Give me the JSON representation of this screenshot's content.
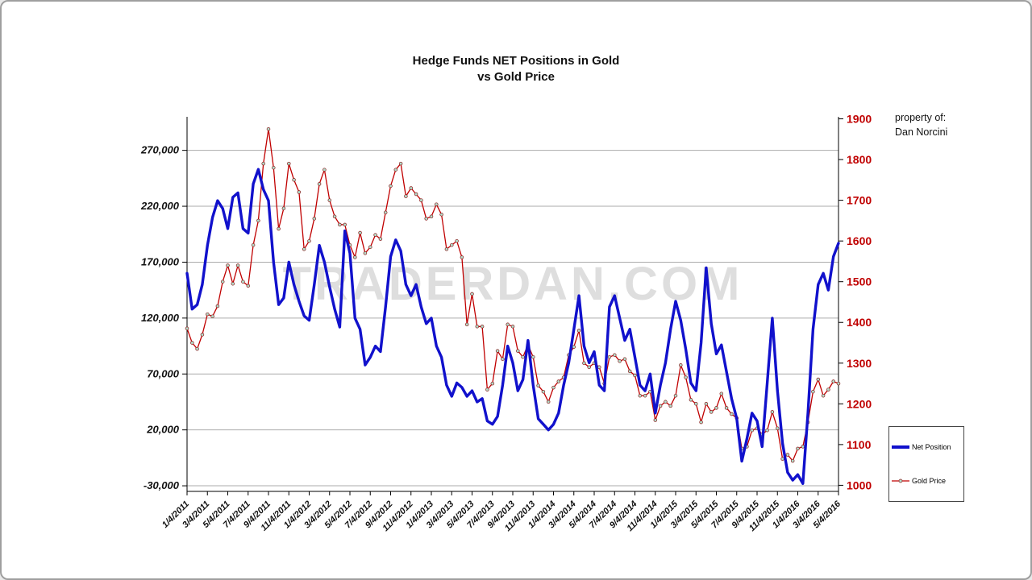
{
  "title": {
    "line1": "Hedge Funds NET Positions in Gold",
    "line2": "vs Gold Price"
  },
  "property_note": {
    "line1": "property of:",
    "line2": "Dan Norcini"
  },
  "watermark": "TRADERDAN.COM",
  "legend": {
    "items": [
      {
        "label": "Net Position",
        "color": "#1111cc"
      },
      {
        "label": "Gold Price",
        "color": "#c00000"
      }
    ]
  },
  "chart_data": {
    "type": "line",
    "title": "Hedge Funds NET Positions in Gold vs Gold Price",
    "grid": true,
    "legend_position": "right-bottom",
    "x_tick_labels": [
      "1/4/2011",
      "3/4/2011",
      "5/4/2011",
      "7/4/2011",
      "9/4/2011",
      "11/4/2011",
      "1/4/2012",
      "3/4/2012",
      "5/4/2012",
      "7/4/2012",
      "9/4/2012",
      "11/4/2012",
      "1/4/2013",
      "3/4/2013",
      "5/4/2013",
      "7/4/2013",
      "9/4/2013",
      "11/4/2013",
      "1/4/2014",
      "3/4/2014",
      "5/4/2014",
      "7/4/2014",
      "9/4/2014",
      "11/4/2014",
      "1/4/2015",
      "3/4/2015",
      "5/4/2015",
      "7/4/2015",
      "9/4/2015",
      "11/4/2015",
      "1/4/2016",
      "3/4/2016",
      "5/4/2016"
    ],
    "points_per_tick": 4,
    "left_axis": {
      "ticks": [
        270000,
        220000,
        170000,
        120000,
        70000,
        20000,
        -30000
      ],
      "tick_labels": [
        "270,000",
        "220,000",
        "170,000",
        "120,000",
        "70,000",
        "20,000",
        "-30,000"
      ],
      "render_max": 300000,
      "render_min": -35000
    },
    "right_axis": {
      "ticks": [
        1900,
        1800,
        1700,
        1600,
        1500,
        1400,
        1300,
        1200,
        1100,
        1000
      ],
      "tick_labels": [
        "1900",
        "1800",
        "1700",
        "1600",
        "1500",
        "1400",
        "1300",
        "1200",
        "1100",
        "1000"
      ],
      "render_max": 1905,
      "render_min": 985
    },
    "series": [
      {
        "name": "Net Position",
        "axis": "left",
        "color": "#1111cc",
        "width": 3.4,
        "values": [
          160000,
          128000,
          132000,
          150000,
          185000,
          210000,
          225000,
          218000,
          200000,
          228000,
          232000,
          200000,
          196000,
          240000,
          253000,
          235000,
          225000,
          170000,
          132000,
          138000,
          170000,
          150000,
          135000,
          122000,
          118000,
          150000,
          185000,
          170000,
          148000,
          128000,
          112000,
          198000,
          178000,
          120000,
          110000,
          78000,
          85000,
          95000,
          90000,
          130000,
          175000,
          190000,
          180000,
          150000,
          140000,
          150000,
          130000,
          115000,
          120000,
          95000,
          85000,
          60000,
          50000,
          62000,
          58000,
          50000,
          55000,
          45000,
          48000,
          28000,
          25000,
          32000,
          60000,
          95000,
          80000,
          55000,
          65000,
          100000,
          60000,
          30000,
          25000,
          20000,
          25000,
          35000,
          60000,
          80000,
          110000,
          140000,
          95000,
          80000,
          90000,
          60000,
          55000,
          130000,
          140000,
          120000,
          100000,
          110000,
          85000,
          60000,
          55000,
          70000,
          35000,
          60000,
          80000,
          110000,
          135000,
          118000,
          92000,
          62000,
          55000,
          98000,
          165000,
          115000,
          88000,
          96000,
          72000,
          48000,
          30000,
          -8000,
          12000,
          35000,
          28000,
          5000,
          62000,
          120000,
          55000,
          8000,
          -18000,
          -25000,
          -20000,
          -28000,
          35000,
          110000,
          150000,
          160000,
          145000,
          175000,
          187000
        ]
      },
      {
        "name": "Gold Price",
        "axis": "right",
        "color": "#c00000",
        "width": 1.3,
        "marker": {
          "fill": "#b2ddcb",
          "stroke": "#8b1a1a",
          "radius": 1.9
        },
        "values": [
          1385,
          1350,
          1335,
          1370,
          1420,
          1415,
          1440,
          1500,
          1540,
          1495,
          1540,
          1500,
          1490,
          1590,
          1650,
          1790,
          1875,
          1780,
          1630,
          1680,
          1790,
          1750,
          1720,
          1580,
          1600,
          1655,
          1740,
          1775,
          1700,
          1660,
          1640,
          1640,
          1590,
          1560,
          1620,
          1570,
          1585,
          1615,
          1605,
          1670,
          1735,
          1775,
          1790,
          1710,
          1730,
          1715,
          1700,
          1655,
          1660,
          1690,
          1665,
          1580,
          1590,
          1600,
          1560,
          1395,
          1470,
          1390,
          1390,
          1235,
          1250,
          1330,
          1310,
          1395,
          1390,
          1330,
          1315,
          1345,
          1315,
          1245,
          1230,
          1205,
          1240,
          1255,
          1265,
          1320,
          1340,
          1380,
          1300,
          1290,
          1300,
          1290,
          1250,
          1315,
          1320,
          1305,
          1310,
          1280,
          1270,
          1220,
          1220,
          1230,
          1160,
          1195,
          1205,
          1195,
          1220,
          1295,
          1265,
          1210,
          1200,
          1155,
          1200,
          1180,
          1190,
          1225,
          1190,
          1175,
          1165,
          1090,
          1095,
          1135,
          1140,
          1125,
          1135,
          1180,
          1140,
          1065,
          1075,
          1060,
          1090,
          1095,
          1155,
          1230,
          1260,
          1220,
          1235,
          1255,
          1250
        ]
      }
    ]
  }
}
